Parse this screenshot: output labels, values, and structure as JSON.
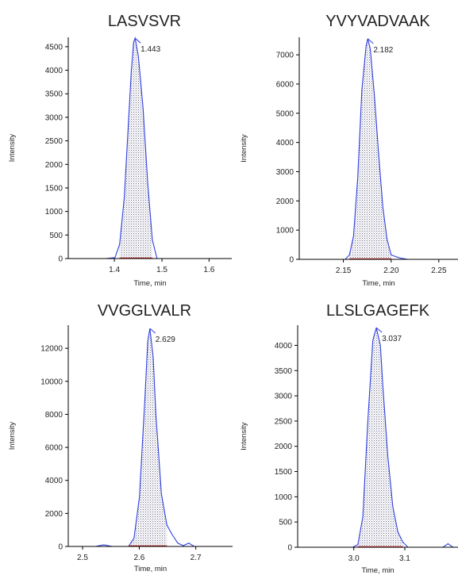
{
  "colors": {
    "trace": "#2f3fe0",
    "fill": "#b8b8d4",
    "baseline_marker": "#c81e1e",
    "axis": "#000000"
  },
  "chart_data": [
    {
      "type": "line",
      "title": "LASVSVR",
      "xlabel": "Time, min",
      "ylabel": "Intensity",
      "xlim": [
        1.3,
        1.65
      ],
      "ylim": [
        0,
        4700
      ],
      "xticks": [
        "1.4",
        "1.5",
        "1.6"
      ],
      "yticks": [
        "0",
        "500",
        "1000",
        "1500",
        "2000",
        "2500",
        "3000",
        "3500",
        "4000",
        "4500"
      ],
      "peak_label": "1.443",
      "peak_x": 1.443,
      "peak_range": [
        1.41,
        1.48
      ],
      "x": [
        1.3,
        1.38,
        1.4,
        1.41,
        1.42,
        1.43,
        1.435,
        1.44,
        1.443,
        1.45,
        1.46,
        1.47,
        1.48,
        1.49,
        1.52,
        1.65
      ],
      "y": [
        0,
        0,
        20,
        300,
        1300,
        3100,
        4000,
        4600,
        4680,
        4300,
        3200,
        1600,
        400,
        0,
        0,
        0
      ]
    },
    {
      "type": "line",
      "title": "YVYVADVAAK",
      "xlabel": "Time, min",
      "ylabel": "Intensity",
      "xlim": [
        2.1,
        2.29
      ],
      "ylim": [
        0,
        7600
      ],
      "xticks": [
        "2.15",
        "2.20",
        "2.25"
      ],
      "yticks": [
        "0",
        "1000",
        "2000",
        "3000",
        "4000",
        "5000",
        "6000",
        "7000"
      ],
      "peak_label": "2.182",
      "peak_x": 2.182,
      "peak_range": [
        2.16,
        2.21
      ],
      "x": [
        2.1,
        2.155,
        2.16,
        2.165,
        2.17,
        2.175,
        2.18,
        2.182,
        2.185,
        2.19,
        2.195,
        2.2,
        2.205,
        2.21,
        2.22,
        2.23,
        2.29
      ],
      "y": [
        0,
        0,
        150,
        800,
        2800,
        5800,
        7300,
        7550,
        7200,
        5600,
        3600,
        1800,
        700,
        150,
        50,
        0,
        0
      ]
    },
    {
      "type": "line",
      "title": "VVGGLVALR",
      "xlabel": "Time, min",
      "ylabel": "Intensity",
      "xlim": [
        2.48,
        2.78
      ],
      "ylim": [
        0,
        13400
      ],
      "xticks": [
        "2.5",
        "2.6",
        "2.7"
      ],
      "yticks": [
        "0",
        "2000",
        "4000",
        "6000",
        "8000",
        "10000",
        "12000"
      ],
      "peak_label": "2.629",
      "peak_x": 2.629,
      "peak_range": [
        2.59,
        2.66
      ],
      "x": [
        2.48,
        2.53,
        2.545,
        2.56,
        2.59,
        2.6,
        2.61,
        2.62,
        2.625,
        2.629,
        2.635,
        2.64,
        2.65,
        2.66,
        2.67,
        2.68,
        2.69,
        2.7,
        2.71,
        2.78
      ],
      "y": [
        0,
        0,
        100,
        0,
        0,
        500,
        3000,
        9000,
        12400,
        13200,
        11500,
        8000,
        3200,
        1300,
        700,
        200,
        50,
        200,
        0,
        0
      ]
    },
    {
      "type": "line",
      "title": "LLSLGAGEFK",
      "xlabel": "Time, min",
      "ylabel": "Intensity",
      "xlim": [
        2.88,
        3.2
      ],
      "ylim": [
        0,
        4400
      ],
      "xticks": [
        "3.0",
        "3.1"
      ],
      "yticks": [
        "0",
        "500",
        "1000",
        "1500",
        "2000",
        "2500",
        "3000",
        "3500",
        "4000"
      ],
      "peak_label": "3.037",
      "peak_x": 3.037,
      "peak_range": [
        3.0,
        3.09
      ],
      "x": [
        2.88,
        2.99,
        3.0,
        3.01,
        3.02,
        3.03,
        3.037,
        3.045,
        3.05,
        3.06,
        3.07,
        3.08,
        3.09,
        3.1,
        3.17,
        3.18,
        3.19,
        3.2
      ],
      "y": [
        0,
        0,
        50,
        600,
        2500,
        4100,
        4350,
        4000,
        3200,
        1800,
        800,
        300,
        100,
        0,
        0,
        70,
        0,
        0
      ]
    }
  ]
}
